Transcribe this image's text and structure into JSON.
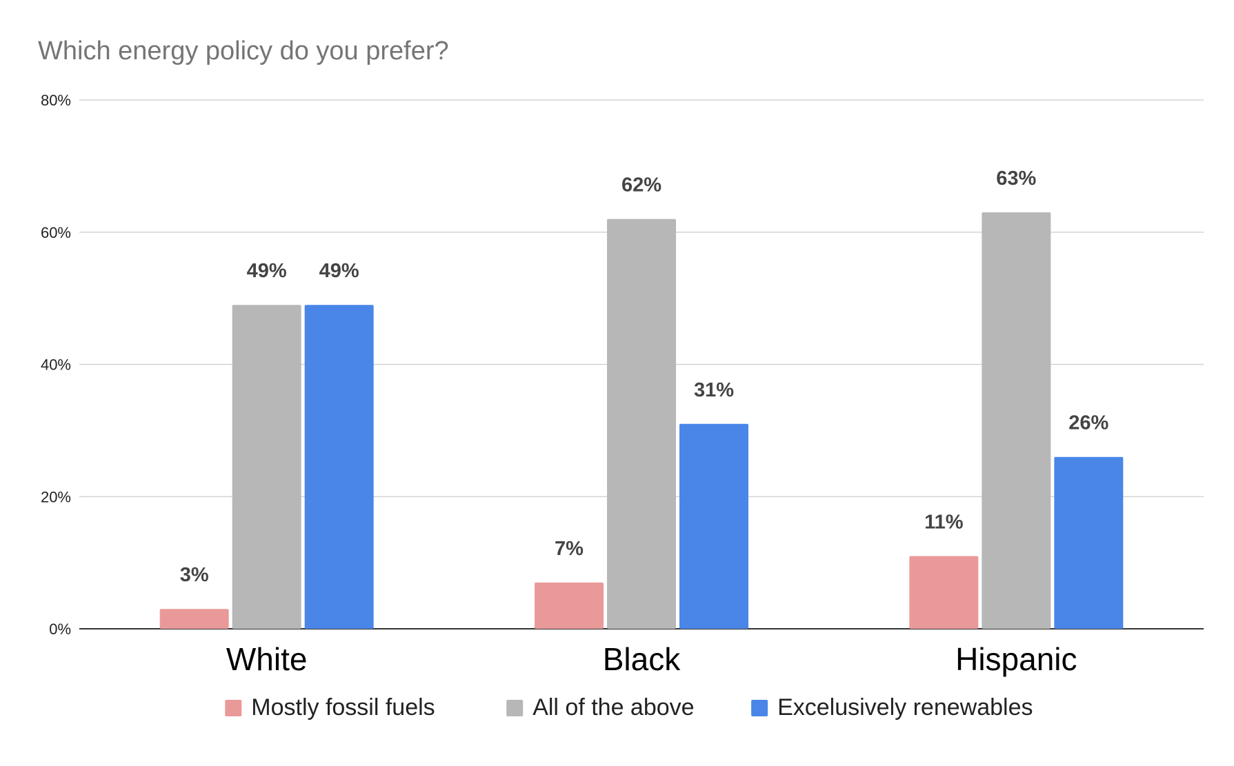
{
  "chart_data": {
    "type": "bar",
    "title": "Which energy policy do you prefer?",
    "categories": [
      "White",
      "Black",
      "Hispanic"
    ],
    "series": [
      {
        "name": "Mostly fossil fuels",
        "values": [
          3,
          7,
          11
        ],
        "labels": [
          "3%",
          "7%",
          "11%"
        ],
        "color": "#ea9999"
      },
      {
        "name": "All of the above",
        "values": [
          49,
          62,
          63
        ],
        "labels": [
          "49%",
          "62%",
          "63%"
        ],
        "color": "#b7b7b7"
      },
      {
        "name": "Excelusively renewables",
        "values": [
          49,
          31,
          26
        ],
        "labels": [
          "49%",
          "31%",
          "26%"
        ],
        "color": "#4a86e8"
      }
    ],
    "yticks": [
      {
        "value": 0,
        "label": "0%"
      },
      {
        "value": 20,
        "label": "20%"
      },
      {
        "value": 40,
        "label": "40%"
      },
      {
        "value": 60,
        "label": "60%"
      },
      {
        "value": 80,
        "label": "80%"
      }
    ],
    "ylim": [
      0,
      80
    ],
    "xlabel": "",
    "ylabel": "",
    "grid": true,
    "legend_position": "bottom",
    "colors": {
      "title": "#757575",
      "axis_text": "#222222",
      "data_label": "#444444",
      "gridline": "#cccccc",
      "baseline": "#333333"
    }
  }
}
